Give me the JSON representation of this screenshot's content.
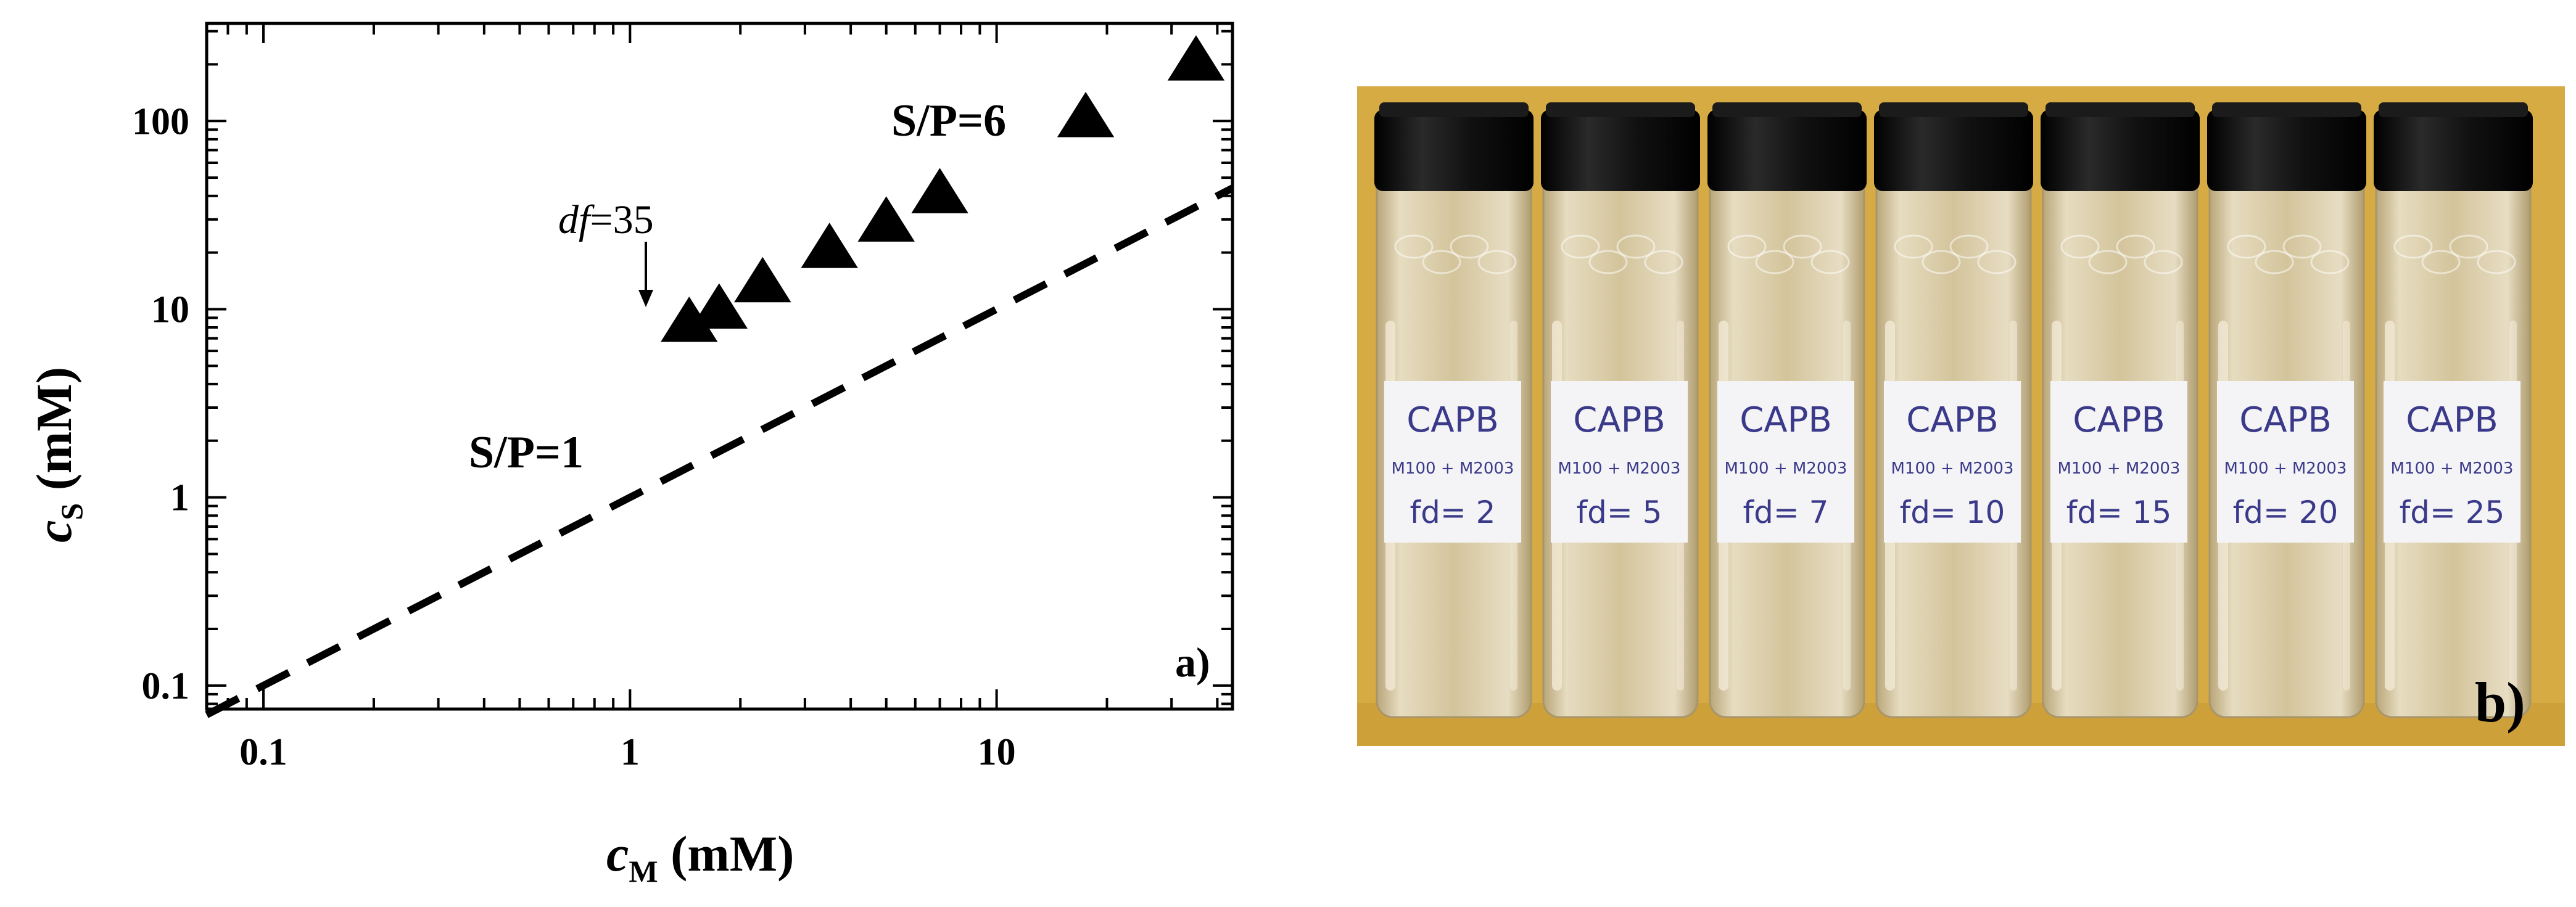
{
  "chart_data": {
    "type": "scatter",
    "panel_label": "a)",
    "xlabel": "c",
    "xlabel_sub": "M",
    "xlabel_unit": " (mM)",
    "ylabel": "c",
    "ylabel_sub": "S",
    "ylabel_unit": " (mM)",
    "x_scale": "log",
    "y_scale": "log",
    "xlim": [
      0.07,
      44
    ],
    "ylim": [
      0.075,
      330
    ],
    "x_tick_labels": [
      "0.1",
      "1",
      "10"
    ],
    "y_tick_labels": [
      "0.1",
      "1",
      "10",
      "100"
    ],
    "grid": false,
    "series": [
      {
        "marker": "triangle",
        "points": [
          {
            "x": 1.45,
            "y": 8.5
          },
          {
            "x": 1.75,
            "y": 10.0
          },
          {
            "x": 2.3,
            "y": 13.8
          },
          {
            "x": 3.5,
            "y": 21.0
          },
          {
            "x": 5.0,
            "y": 29.0
          },
          {
            "x": 7.0,
            "y": 41.0
          },
          {
            "x": 17.5,
            "y": 104.0
          },
          {
            "x": 35.0,
            "y": 208.0
          }
        ]
      }
    ],
    "reference_line": {
      "style": "dashed",
      "slope_ratio": 1
    },
    "annotations": {
      "sp6": "S/P=6",
      "sp1": "S/P=1",
      "df_prefix": "df",
      "df_value": "=35"
    }
  },
  "photo": {
    "panel_label": "b)",
    "vials": [
      {
        "title": "CAPB",
        "mix": "M100 + M2003",
        "fd": "fd= 2"
      },
      {
        "title": "CAPB",
        "mix": "M100 + M2003",
        "fd": "fd= 5"
      },
      {
        "title": "CAPB",
        "mix": "M100 + M2003",
        "fd": "fd= 7"
      },
      {
        "title": "CAPB",
        "mix": "M100 + M2003",
        "fd": "fd= 10"
      },
      {
        "title": "CAPB",
        "mix": "M100 + M2003",
        "fd": "fd= 15"
      },
      {
        "title": "CAPB",
        "mix": "M100 + M2003",
        "fd": "fd= 20"
      },
      {
        "title": "CAPB",
        "mix": "M100 + M2003",
        "fd": "fd= 25"
      }
    ],
    "colors": {
      "background": "#d6ab43",
      "cap": "#101010",
      "glass": "#cdb98a",
      "label_paper": "#f4f4f6",
      "ink": "#3b3a8a"
    }
  }
}
